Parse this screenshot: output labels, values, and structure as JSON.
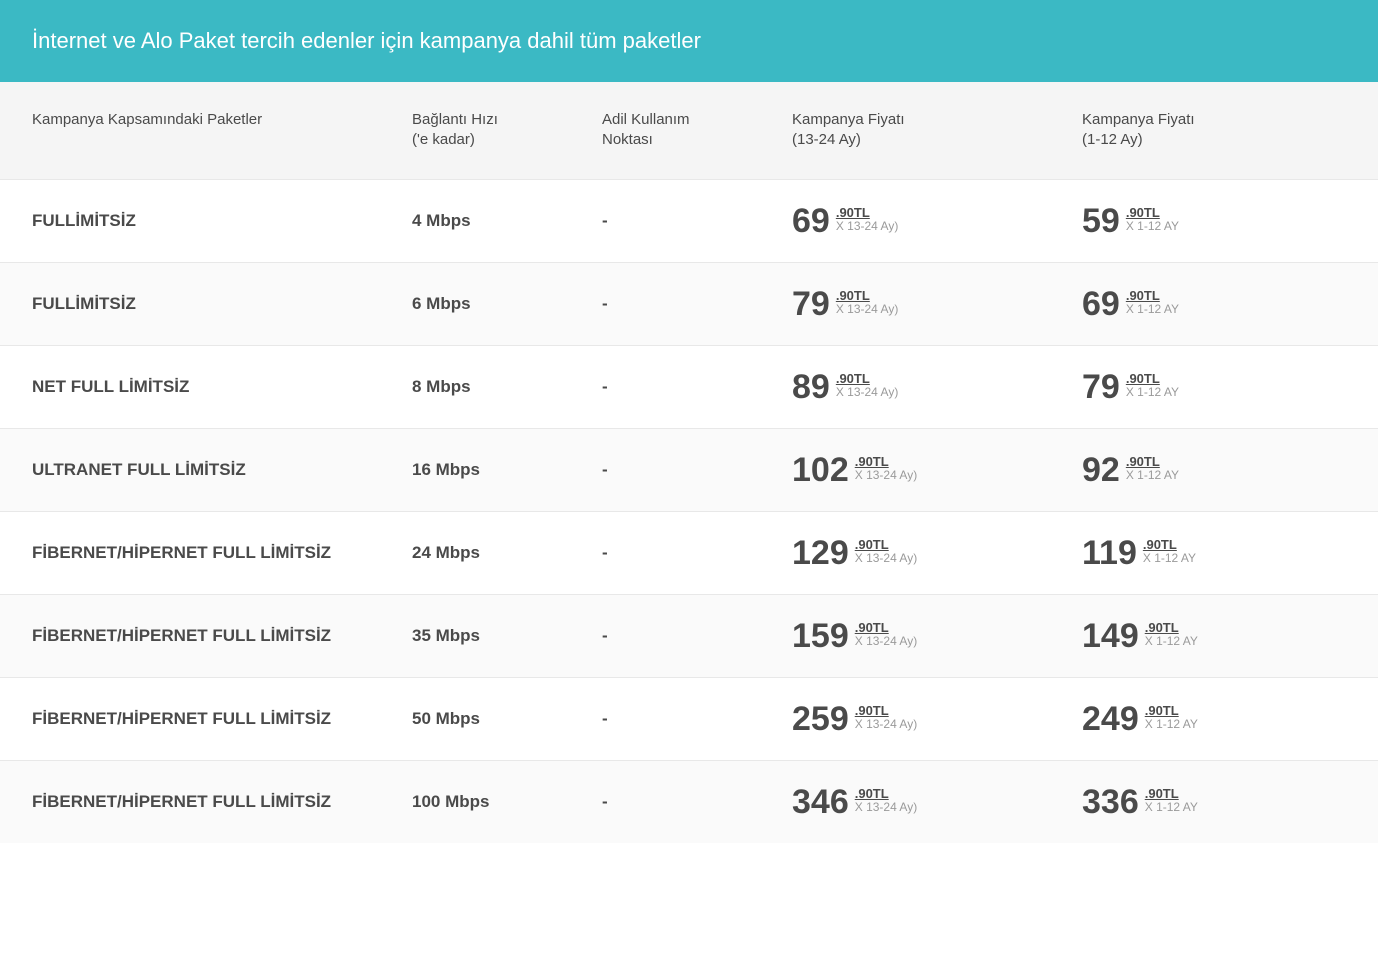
{
  "banner_title": "İnternet ve Alo Paket tercih edenler için kampanya dahil tüm paketler",
  "columns": {
    "name": "Kampanya Kapsamındaki Paketler",
    "speed_line1": "Bağlantı Hızı",
    "speed_line2": "('e kadar)",
    "usage_line1": "Adil Kullanım",
    "usage_line2": "Noktası",
    "price_a_line1": "Kampanya Fiyatı",
    "price_a_line2": "(13-24 Ay)",
    "price_b_line1": "Kampanya Fiyatı",
    "price_b_line2": "(1-12 Ay)"
  },
  "price_a_period": "X 13-24 Ay)",
  "price_b_period": "X 1-12 AY",
  "currency_suffix": ".90TL",
  "colors": {
    "banner_bg": "#3bb9c4",
    "banner_text": "#ffffff",
    "header_bg": "#f5f5f5",
    "row_border": "#e8e8e8",
    "text_main": "#4a4a4a",
    "text_muted": "#9a9a9a"
  },
  "rows": [
    {
      "name": "FULLİMİTSİZ",
      "speed": "4 Mbps",
      "usage": "-",
      "price_a": "69",
      "price_b": "59"
    },
    {
      "name": "FULLİMİTSİZ",
      "speed": "6 Mbps",
      "usage": "-",
      "price_a": "79",
      "price_b": "69"
    },
    {
      "name": "NET FULL LİMİTSİZ",
      "speed": "8 Mbps",
      "usage": "-",
      "price_a": "89",
      "price_b": "79"
    },
    {
      "name": "ULTRANET FULL LİMİTSİZ",
      "speed": "16 Mbps",
      "usage": "-",
      "price_a": "102",
      "price_b": "92"
    },
    {
      "name": "FİBERNET/HİPERNET FULL LİMİTSİZ",
      "speed": "24 Mbps",
      "usage": "-",
      "price_a": "129",
      "price_b": "119"
    },
    {
      "name": "FİBERNET/HİPERNET FULL LİMİTSİZ",
      "speed": "35 Mbps",
      "usage": "-",
      "price_a": "159",
      "price_b": "149"
    },
    {
      "name": "FİBERNET/HİPERNET FULL LİMİTSİZ",
      "speed": "50 Mbps",
      "usage": "-",
      "price_a": "259",
      "price_b": "249"
    },
    {
      "name": "FİBERNET/HİPERNET FULL LİMİTSİZ",
      "speed": "100 Mbps",
      "usage": "-",
      "price_a": "346",
      "price_b": "336"
    }
  ]
}
